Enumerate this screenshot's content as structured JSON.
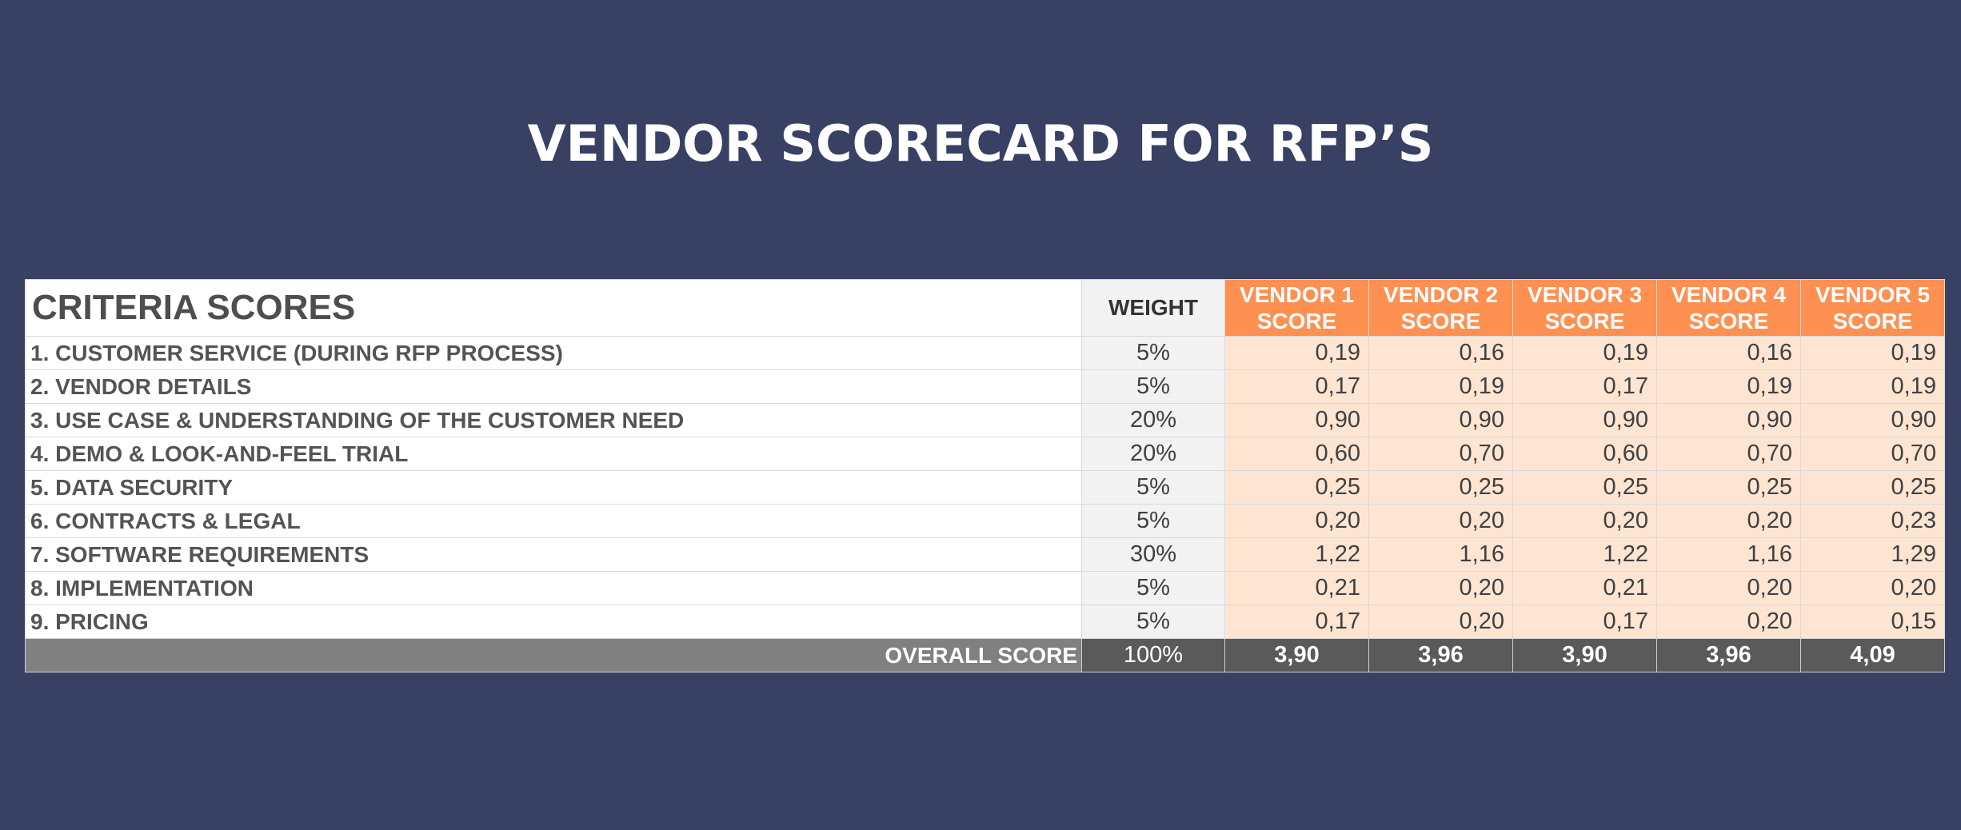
{
  "title": "VENDOR SCORECARD FOR RFP’S",
  "header": {
    "criteria": "CRITERIA SCORES",
    "weight": "WEIGHT",
    "vendors": [
      {
        "line1": "VENDOR 1",
        "line2": "SCORE"
      },
      {
        "line1": "VENDOR 2",
        "line2": "SCORE"
      },
      {
        "line1": "VENDOR 3",
        "line2": "SCORE"
      },
      {
        "line1": "VENDOR 4",
        "line2": "SCORE"
      },
      {
        "line1": "VENDOR 5",
        "line2": "SCORE"
      }
    ]
  },
  "rows": [
    {
      "criterion": "1. CUSTOMER SERVICE (DURING RFP PROCESS)",
      "weight": "5%",
      "scores": [
        "0,19",
        "0,16",
        "0,19",
        "0,16",
        "0,19"
      ]
    },
    {
      "criterion": "2. VENDOR DETAILS",
      "weight": "5%",
      "scores": [
        "0,17",
        "0,19",
        "0,17",
        "0,19",
        "0,19"
      ]
    },
    {
      "criterion": "3. USE CASE & UNDERSTANDING OF THE CUSTOMER NEED",
      "weight": "20%",
      "scores": [
        "0,90",
        "0,90",
        "0,90",
        "0,90",
        "0,90"
      ]
    },
    {
      "criterion": "4. DEMO & LOOK-AND-FEEL TRIAL",
      "weight": "20%",
      "scores": [
        "0,60",
        "0,70",
        "0,60",
        "0,70",
        "0,70"
      ]
    },
    {
      "criterion": "5. DATA SECURITY",
      "weight": "5%",
      "scores": [
        "0,25",
        "0,25",
        "0,25",
        "0,25",
        "0,25"
      ]
    },
    {
      "criterion": "6. CONTRACTS & LEGAL",
      "weight": "5%",
      "scores": [
        "0,20",
        "0,20",
        "0,20",
        "0,20",
        "0,23"
      ]
    },
    {
      "criterion": "7. SOFTWARE REQUIREMENTS",
      "weight": "30%",
      "scores": [
        "1,22",
        "1,16",
        "1,22",
        "1,16",
        "1,29"
      ]
    },
    {
      "criterion": "8. IMPLEMENTATION",
      "weight": "5%",
      "scores": [
        "0,21",
        "0,20",
        "0,21",
        "0,20",
        "0,20"
      ]
    },
    {
      "criterion": "9. PRICING",
      "weight": "5%",
      "scores": [
        "0,17",
        "0,20",
        "0,17",
        "0,20",
        "0,15"
      ]
    }
  ],
  "overall": {
    "label": "OVERALL SCORE",
    "weight": "100%",
    "scores": [
      "3,90",
      "3,96",
      "3,90",
      "3,96",
      "4,09"
    ]
  },
  "colors": {
    "background": "#384163",
    "vendor_header": "#fe9051",
    "score_cells": "#fde5d2",
    "weight_cells": "#f2f2f2",
    "total_row_label": "#808080",
    "total_row_values": "#5a5a5a"
  }
}
